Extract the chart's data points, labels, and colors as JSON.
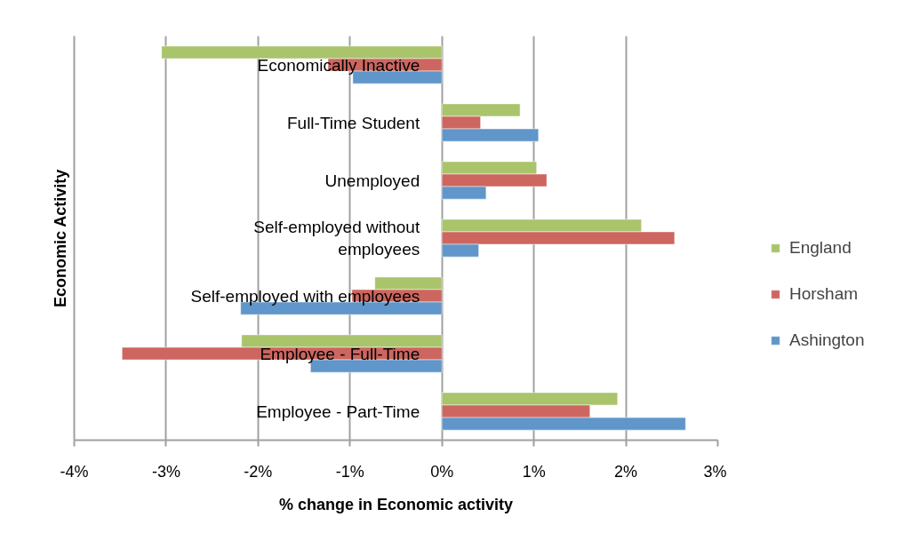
{
  "chart_data": {
    "type": "bar",
    "orientation": "horizontal",
    "xlabel": "% change in Economic activity",
    "ylabel": "Economic Activity",
    "categories": [
      "Economically Inactive",
      "Full-Time Student",
      "Unemployed",
      "Self-employed without\nemployees",
      "Self-employed with employees",
      "Employee - Full-Time",
      "Employee - Part-Time"
    ],
    "series": [
      {
        "name": "England",
        "color": "#a9c46b",
        "values": [
          -3.05,
          0.85,
          1.03,
          2.17,
          -0.73,
          -2.18,
          1.91
        ]
      },
      {
        "name": "Horsham",
        "color": "#cd665f",
        "values": [
          -1.24,
          0.42,
          1.14,
          2.53,
          -0.98,
          -3.48,
          1.61
        ]
      },
      {
        "name": "Ashington",
        "color": "#6096c9",
        "values": [
          -0.97,
          1.05,
          0.48,
          0.4,
          -2.19,
          -1.43,
          2.65
        ]
      }
    ],
    "xlim": [
      -4,
      3
    ],
    "xticks": [
      {
        "value": -4,
        "label": "-4%"
      },
      {
        "value": -3,
        "label": "-3%"
      },
      {
        "value": -2,
        "label": "-2%"
      },
      {
        "value": -1,
        "label": "-1%"
      },
      {
        "value": 0,
        "label": "0%"
      },
      {
        "value": 1,
        "label": "1%"
      },
      {
        "value": 2,
        "label": "2%"
      },
      {
        "value": 3,
        "label": "3%"
      }
    ],
    "grid": "x",
    "legend": "right"
  }
}
